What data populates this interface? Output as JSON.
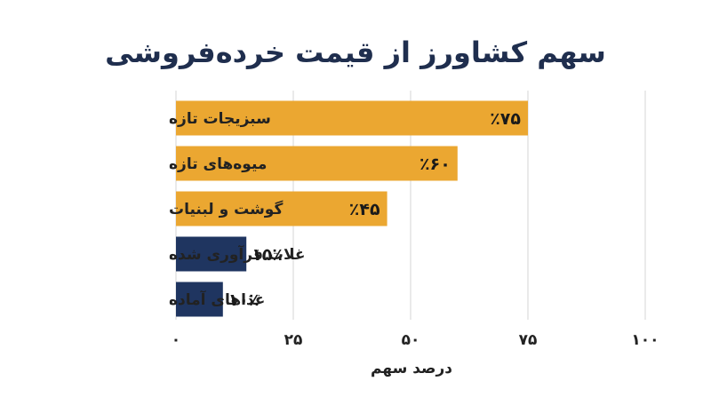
{
  "chart_data": {
    "type": "bar",
    "orientation": "horizontal",
    "title": "سهم کشاورز از قیمت خرده‌فروشی",
    "xlabel": "درصد سهم",
    "ylabel": "",
    "xlim": [
      0,
      100
    ],
    "grid": true,
    "ticks": [
      {
        "value": 0,
        "label": "۰"
      },
      {
        "value": 25,
        "label": "۲۵"
      },
      {
        "value": 50,
        "label": "۵۰"
      },
      {
        "value": 75,
        "label": "۷۵"
      },
      {
        "value": 100,
        "label": "۱۰۰"
      }
    ],
    "categories": [
      "سبزیجات تازه",
      "میوه‌های تازه",
      "گوشت و لبنیات",
      "غلات فرآوری شده",
      "غذاهای آماده"
    ],
    "values": [
      75,
      60,
      45,
      15,
      10
    ],
    "value_labels": [
      "٪۷۵",
      "٪۶۰",
      "٪۴۵",
      "۱۵٪",
      "۱۰٪"
    ],
    "colors": [
      "#eba731",
      "#eba731",
      "#eba731",
      "#1f3560",
      "#1f3560"
    ]
  }
}
